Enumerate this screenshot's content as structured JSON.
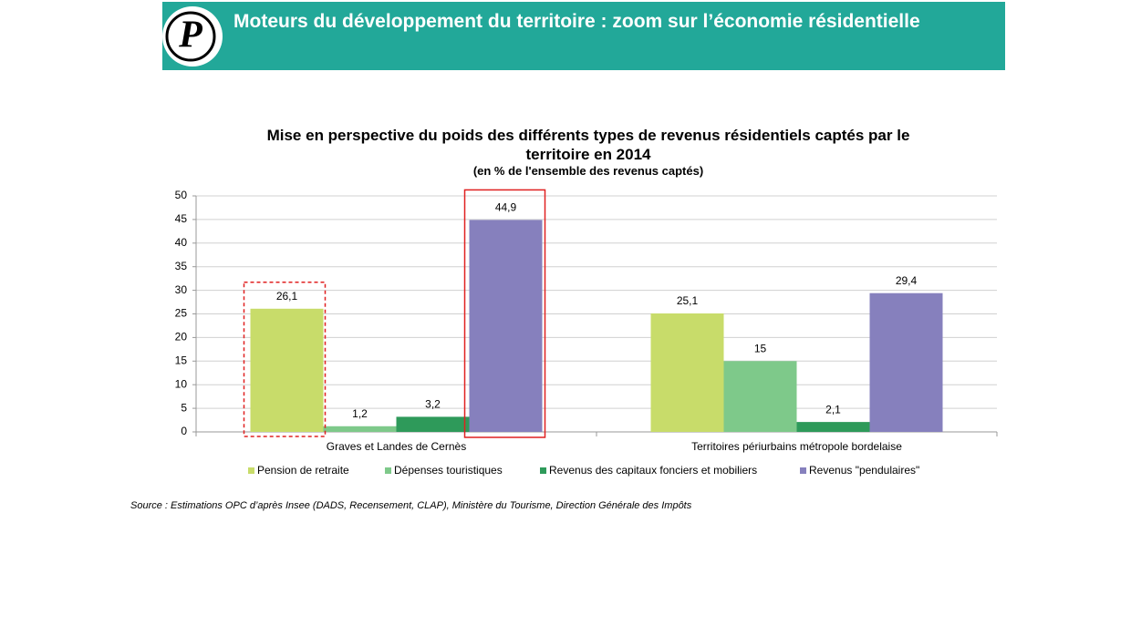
{
  "header": {
    "title": "Moteurs du développement du territoire : zoom sur l’économie résidentielle"
  },
  "chart_data": {
    "type": "bar",
    "title": "Mise en perspective du poids des différents types de revenus résidentiels captés par le territoire en 2014",
    "subtitle": "(en % de l'ensemble des revenus captés)",
    "categories": [
      "Graves et Landes de Cernès",
      "Territoires périurbains métropole bordelaise"
    ],
    "series": [
      {
        "name": "Pension de retraite",
        "color": "#c8dc6a",
        "values": [
          26.1,
          25.1
        ],
        "value_labels": [
          "26,1",
          "25,1"
        ]
      },
      {
        "name": "Dépenses touristiques",
        "color": "#7ec98a",
        "values": [
          1.2,
          15
        ],
        "value_labels": [
          "1,2",
          "15"
        ]
      },
      {
        "name": "Revenus des capitaux fonciers et mobiliers",
        "color": "#2e9a5a",
        "values": [
          3.2,
          2.1
        ],
        "value_labels": [
          "3,2",
          "2,1"
        ]
      },
      {
        "name": "Revenus \"pendulaires\"",
        "color": "#8680bd",
        "values": [
          44.9,
          29.4
        ],
        "value_labels": [
          "44,9",
          "29,4"
        ]
      }
    ],
    "ylim": [
      0,
      50
    ],
    "yticks": [
      0,
      5,
      10,
      15,
      20,
      25,
      30,
      35,
      40,
      45,
      50
    ],
    "grid": true,
    "legend": "bottom",
    "source": "Source : Estimations OPC d’après Insee (DADS, Recensement, CLAP), Ministère du Tourisme, Direction Générale des Impôts"
  }
}
